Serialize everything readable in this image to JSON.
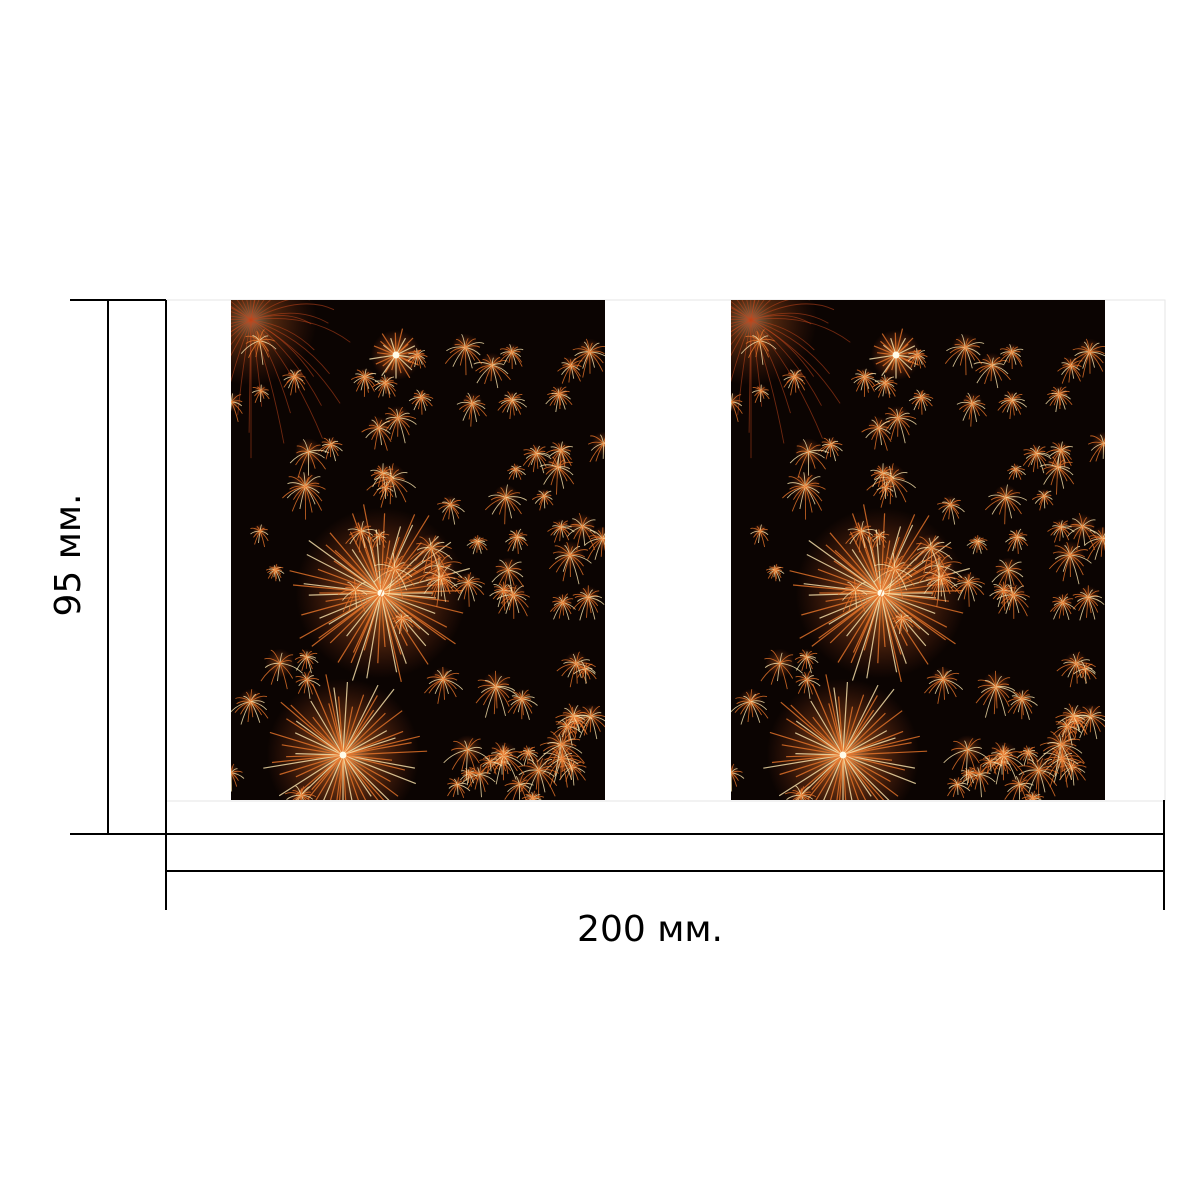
{
  "dimensions": {
    "height_label": "95 мм.",
    "width_label": "200 мм."
  },
  "photos": [
    {
      "subject": "fireworks"
    },
    {
      "subject": "fireworks"
    }
  ],
  "colors": {
    "background": "#ffffff",
    "line": "#000000",
    "night_sky": "#0b0402",
    "spark_core": "#ffe9b0",
    "spark_orange": "#e8762a",
    "spark_red": "#c2461c"
  }
}
